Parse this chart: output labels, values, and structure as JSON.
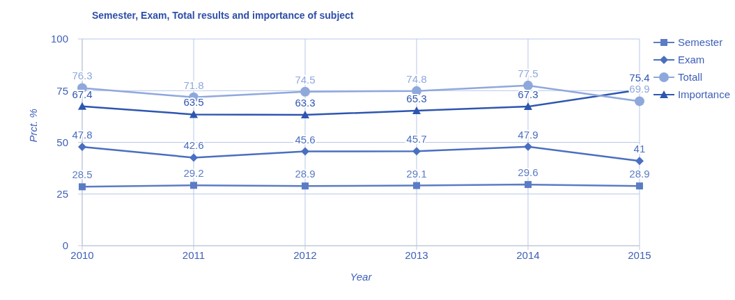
{
  "chart_data": {
    "type": "line",
    "title": "Semester, Exam, Total results and importance of subject",
    "xlabel": "Year",
    "ylabel": "Prct. %",
    "categories": [
      "2010",
      "2011",
      "2012",
      "2013",
      "2014",
      "2015"
    ],
    "series": [
      {
        "name": "Semester",
        "color": "#5b7cc4",
        "marker": "square",
        "values": [
          28.5,
          29.2,
          28.9,
          29.1,
          29.6,
          28.9
        ]
      },
      {
        "name": "Exam",
        "color": "#4a6fc0",
        "marker": "diamond",
        "values": [
          47.8,
          42.6,
          45.6,
          45.7,
          47.9,
          41
        ]
      },
      {
        "name": "Totall",
        "color": "#8fa8dc",
        "marker": "circle",
        "values": [
          76.3,
          71.8,
          74.5,
          74.8,
          77.5,
          69.9
        ]
      },
      {
        "name": "Importance",
        "color": "#2e56b0",
        "marker": "triangle",
        "values": [
          67.4,
          63.5,
          63.3,
          65.3,
          67.3,
          75.4
        ]
      }
    ],
    "ylim": [
      0,
      100
    ],
    "yticks": [
      0,
      25,
      50,
      75,
      100
    ],
    "grid": true,
    "legend": "top right",
    "data_labels": true
  }
}
